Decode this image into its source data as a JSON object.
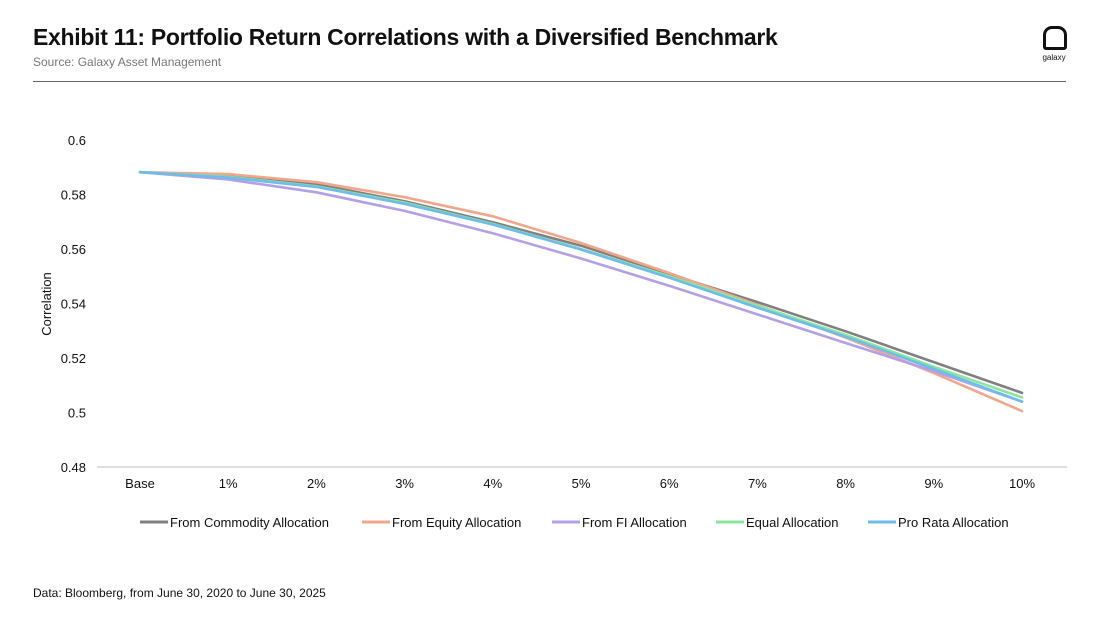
{
  "header": {
    "title": "Exhibit 11: Portfolio Return Correlations with a Diversified Benchmark",
    "subtitle": "Source: Galaxy Asset Management",
    "logo_text": "galaxy",
    "logo_icon": "galaxy-logo-icon"
  },
  "footer": {
    "note": "Data: Bloomberg, from June 30, 2020 to June 30, 2025"
  },
  "chart_data": {
    "type": "line",
    "title": "",
    "xlabel": "",
    "ylabel": "Correlation",
    "categories": [
      "Base",
      "1%",
      "2%",
      "3%",
      "4%",
      "5%",
      "6%",
      "7%",
      "8%",
      "9%",
      "10%"
    ],
    "ylim": [
      0.48,
      0.6
    ],
    "yticks": [
      0.48,
      0.5,
      0.52,
      0.54,
      0.56,
      0.58,
      0.6
    ],
    "ytick_labels": [
      "0.48",
      "0.5",
      "0.52",
      "0.54",
      "0.56",
      "0.58",
      "0.6"
    ],
    "grid": false,
    "legend_position": "bottom",
    "series": [
      {
        "name": "From Commodity Allocation",
        "color": "#808080",
        "values": [
          0.5882,
          0.5868,
          0.5838,
          0.5775,
          0.5698,
          0.5612,
          0.5508,
          0.5405,
          0.5298,
          0.5185,
          0.5072
        ]
      },
      {
        "name": "From Equity Allocation",
        "color": "#F2A68C",
        "values": [
          0.5882,
          0.5875,
          0.5845,
          0.579,
          0.572,
          0.5622,
          0.5512,
          0.5395,
          0.5275,
          0.5145,
          0.5005
        ]
      },
      {
        "name": "From FI Allocation",
        "color": "#B4A0E6",
        "values": [
          0.5882,
          0.5855,
          0.5808,
          0.574,
          0.5658,
          0.5565,
          0.5465,
          0.536,
          0.5255,
          0.5152,
          0.504
        ]
      },
      {
        "name": "Equal Allocation",
        "color": "#8CE6A0",
        "values": [
          0.5882,
          0.5865,
          0.583,
          0.577,
          0.5692,
          0.56,
          0.55,
          0.5392,
          0.5285,
          0.5168,
          0.5055
        ]
      },
      {
        "name": "Pro Rata Allocation",
        "color": "#6EBCEA",
        "values": [
          0.5882,
          0.5862,
          0.5828,
          0.5766,
          0.569,
          0.5598,
          0.5495,
          0.5385,
          0.5278,
          0.516,
          0.504
        ]
      }
    ]
  }
}
